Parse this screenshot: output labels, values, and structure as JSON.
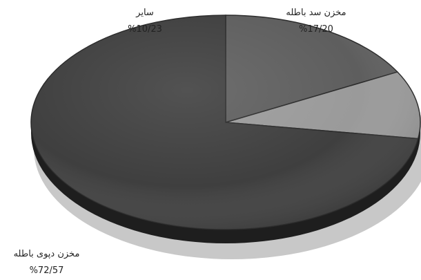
{
  "chart_data": {
    "type": "pie",
    "style": "3d",
    "slices": [
      {
        "label": "مخزن سد باطله",
        "value": 17.2,
        "value_label": "%17/20",
        "color": "#5e5e5e"
      },
      {
        "label": "سایر",
        "value": 10.23,
        "value_label": "%10/23",
        "color": "#9a9a9a"
      },
      {
        "label": "مخزن دپوی باطله",
        "value": 72.57,
        "value_label": "%72/57",
        "color": "#3f3f3f"
      }
    ],
    "legend": "none",
    "data_labels": "outside"
  }
}
